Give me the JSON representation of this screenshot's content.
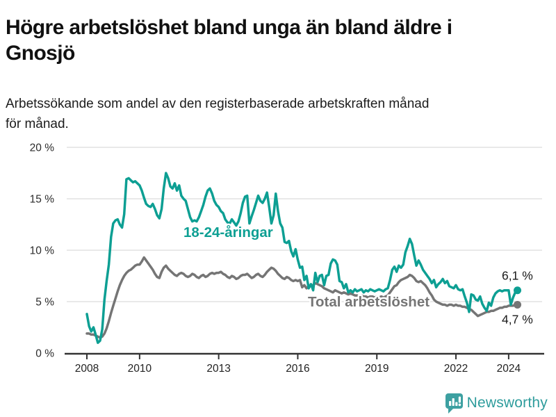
{
  "page": {
    "title": "Högre arbetslöshet bland unga än bland äldre i\nGnosjö",
    "subtitle": "Arbetssökande som andel av den registerbaserade arbetskraften månad\nför månad."
  },
  "chart_data": {
    "type": "line",
    "title": "Högre arbetslöshet bland unga än bland äldre i Gnosjö",
    "subtitle": "Arbetssökande som andel av den registerbaserade arbetskraften månad för månad.",
    "x_unit": "month",
    "x_start": "2008-01",
    "x_end": "2024-05",
    "x_tick_labels": [
      "2008",
      "2010",
      "2013",
      "2016",
      "2019",
      "2022",
      "2024"
    ],
    "x_tick_years": [
      2008,
      2010,
      2013,
      2016,
      2019,
      2022,
      2024
    ],
    "y_ticks": [
      0,
      5,
      10,
      15,
      20
    ],
    "y_tick_labels": [
      "0 %",
      "5 %",
      "10 %",
      "15 %",
      "20 %"
    ],
    "ylim": [
      0,
      20
    ],
    "grid": "horizontal",
    "legend_position": "inline-labels",
    "series": [
      {
        "name": "18-24-åringar",
        "color": "#0D9F93",
        "end_label": "6,1 %",
        "end_value": 6.1,
        "values": [
          3.8,
          2.6,
          2.1,
          2.5,
          1.8,
          1.0,
          1.2,
          2.3,
          5.2,
          7.0,
          8.6,
          11.3,
          12.6,
          12.9,
          13.0,
          12.5,
          12.2,
          13.5,
          16.9,
          17.0,
          16.8,
          16.6,
          16.7,
          16.5,
          16.3,
          15.8,
          15.1,
          14.5,
          14.3,
          14.2,
          14.5,
          14.0,
          13.4,
          13.1,
          14.0,
          16.0,
          17.5,
          17.0,
          16.2,
          16.0,
          16.5,
          15.8,
          16.3,
          15.3,
          15.0,
          14.8,
          14.0,
          13.2,
          12.8,
          12.9,
          12.8,
          13.2,
          13.8,
          14.4,
          15.2,
          15.8,
          16.0,
          15.5,
          14.8,
          14.4,
          14.2,
          13.8,
          13.6,
          13.0,
          12.7,
          12.6,
          13.0,
          12.7,
          12.4,
          12.8,
          13.6,
          14.6,
          15.2,
          15.3,
          12.6,
          13.3,
          13.9,
          14.6,
          15.3,
          14.8,
          14.6,
          15.0,
          15.6,
          14.2,
          12.6,
          13.4,
          15.5,
          13.8,
          12.6,
          12.2,
          10.8,
          10.7,
          10.9,
          9.9,
          9.4,
          10.1,
          9.1,
          8.3,
          8.4,
          7.1,
          7.5,
          6.3,
          6.7,
          6.1,
          7.8,
          6.9,
          7.5,
          7.6,
          6.6,
          7.5,
          7.6,
          8.7,
          9.1,
          9.0,
          8.6,
          7.0,
          6.9,
          6.3,
          6.7,
          5.9,
          6.1,
          5.9,
          6.2,
          6.0,
          6.1,
          6.2,
          5.9,
          6.1,
          6.0,
          6.2,
          6.1,
          6.0,
          6.1,
          6.2,
          6.1,
          6.0,
          6.2,
          6.3,
          7.1,
          8.1,
          8.4,
          7.9,
          8.5,
          8.3,
          8.6,
          9.8,
          10.4,
          11.1,
          10.6,
          9.5,
          8.5,
          9.0,
          8.6,
          8.1,
          7.8,
          7.5,
          7.2,
          6.8,
          7.1,
          6.4,
          6.7,
          6.9,
          7.2,
          6.8,
          7.0,
          6.5,
          6.4,
          6.3,
          6.6,
          6.2,
          6.1,
          6.2,
          5.5,
          4.9,
          4.0,
          5.7,
          5.6,
          5.2,
          5.1,
          5.5,
          4.8,
          4.4,
          4.1,
          4.9,
          4.6,
          5.4,
          5.8,
          6.0,
          6.1,
          6.0,
          6.1,
          6.1,
          6.1,
          4.7,
          5.4,
          5.9,
          6.1
        ]
      },
      {
        "name": "Total arbetslöshet",
        "color": "#757575",
        "end_label": "4,7 %",
        "end_value": 4.7,
        "values": [
          1.9,
          1.9,
          1.8,
          1.8,
          1.7,
          1.6,
          1.5,
          1.6,
          1.9,
          2.4,
          3.1,
          3.9,
          4.6,
          5.3,
          6.0,
          6.6,
          7.1,
          7.5,
          7.8,
          8.0,
          8.1,
          8.3,
          8.5,
          8.6,
          8.6,
          8.9,
          9.3,
          9.0,
          8.7,
          8.4,
          8.1,
          7.7,
          7.4,
          7.3,
          7.9,
          8.3,
          8.5,
          8.2,
          8.0,
          7.8,
          7.6,
          7.5,
          7.7,
          7.8,
          7.7,
          7.5,
          7.4,
          7.5,
          7.7,
          7.6,
          7.4,
          7.3,
          7.5,
          7.6,
          7.4,
          7.5,
          7.7,
          7.8,
          7.7,
          7.8,
          7.8,
          7.9,
          7.7,
          7.6,
          7.4,
          7.3,
          7.5,
          7.4,
          7.2,
          7.3,
          7.5,
          7.6,
          7.6,
          7.7,
          7.5,
          7.3,
          7.4,
          7.6,
          7.7,
          7.5,
          7.4,
          7.6,
          7.9,
          8.1,
          8.3,
          8.2,
          8.0,
          7.7,
          7.5,
          7.3,
          7.2,
          7.4,
          7.3,
          7.1,
          7.0,
          7.1,
          7.0,
          7.1,
          6.4,
          6.6,
          6.3,
          6.5,
          6.6,
          6.6,
          6.8,
          6.7,
          6.6,
          6.5,
          6.3,
          6.2,
          6.1,
          6.0,
          5.9,
          6.1,
          6.0,
          5.9,
          5.8,
          5.9,
          5.8,
          5.7,
          5.8,
          5.7,
          5.6,
          5.6,
          5.5,
          5.6,
          5.5,
          5.5,
          5.4,
          5.5,
          5.5,
          5.4,
          5.5,
          5.4,
          5.5,
          5.4,
          5.5,
          5.6,
          5.9,
          6.2,
          6.5,
          6.6,
          6.9,
          7.1,
          7.2,
          7.3,
          7.4,
          7.6,
          7.5,
          7.3,
          7.0,
          6.9,
          7.0,
          6.8,
          6.6,
          6.3,
          5.9,
          5.6,
          5.2,
          5.0,
          4.9,
          4.8,
          4.7,
          4.7,
          4.6,
          4.7,
          4.7,
          4.6,
          4.7,
          4.6,
          4.6,
          4.5,
          4.5,
          4.4,
          4.3,
          4.2,
          4.0,
          3.8,
          3.6,
          3.7,
          3.8,
          3.9,
          4.0,
          4.0,
          4.1,
          4.1,
          4.2,
          4.3,
          4.4,
          4.4,
          4.5,
          4.5,
          4.6,
          4.6,
          4.6,
          4.7,
          4.7
        ]
      }
    ]
  },
  "footer": {
    "brand": "Newsworthy"
  },
  "colors": {
    "youth_line": "#0D9F93",
    "total_line": "#757575",
    "grid": "#DCDCDC",
    "axis": "#333333",
    "text": "#1A1A1A",
    "brand_teal": "#3DA0A1"
  }
}
